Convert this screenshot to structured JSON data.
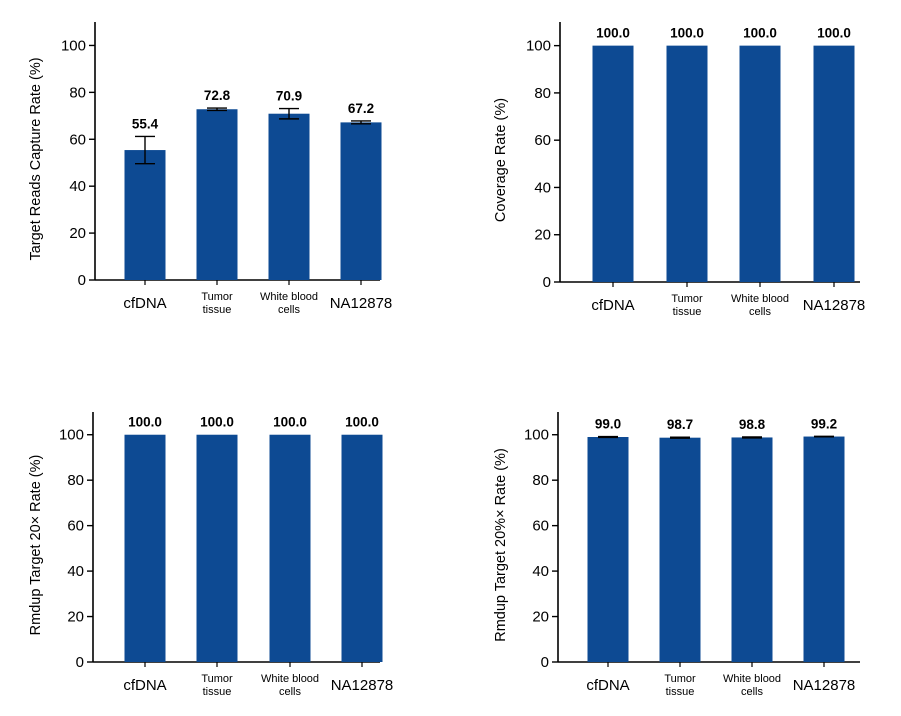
{
  "chart_data": [
    {
      "type": "bar",
      "ylabel": "Target Reads Capture Rate (%)",
      "categories": [
        [
          "cfDNA"
        ],
        [
          "Tumor",
          "tissue"
        ],
        [
          "White blood",
          "cells"
        ],
        [
          "NA12878"
        ]
      ],
      "values": [
        55.4,
        72.8,
        70.9,
        67.2
      ],
      "data_labels": [
        "55.4",
        "72.8",
        "70.9",
        "67.2"
      ],
      "error": [
        5.8,
        0.5,
        2.2,
        0.6
      ],
      "ylim": [
        0,
        110
      ],
      "yticks": [
        0,
        20,
        40,
        60,
        80,
        100
      ],
      "color": "#0d4a93"
    },
    {
      "type": "bar",
      "ylabel": "Coverage Rate (%)",
      "categories": [
        [
          "cfDNA"
        ],
        [
          "Tumor",
          "tissue"
        ],
        [
          "White blood",
          "cells"
        ],
        [
          "NA12878"
        ]
      ],
      "values": [
        100.0,
        100.0,
        100.0,
        100.0
      ],
      "data_labels": [
        "100.0",
        "100.0",
        "100.0",
        "100.0"
      ],
      "error": [
        0,
        0,
        0,
        0
      ],
      "ylim": [
        0,
        110
      ],
      "yticks": [
        0,
        20,
        40,
        60,
        80,
        100
      ],
      "color": "#0d4a93"
    },
    {
      "type": "bar",
      "ylabel": "Rmdup Target 20× Rate (%)",
      "categories": [
        [
          "cfDNA"
        ],
        [
          "Tumor",
          "tissue"
        ],
        [
          "White blood",
          "cells"
        ],
        [
          "NA12878"
        ]
      ],
      "values": [
        100.0,
        100.0,
        100.0,
        100.0
      ],
      "data_labels": [
        "100.0",
        "100.0",
        "100.0",
        "100.0"
      ],
      "error": [
        0,
        0,
        0,
        0
      ],
      "ylim": [
        0,
        110
      ],
      "yticks": [
        0,
        20,
        40,
        60,
        80,
        100
      ],
      "color": "#0d4a93"
    },
    {
      "type": "bar",
      "ylabel": "Rmdup Target 20%× Rate (%)",
      "categories": [
        [
          "cfDNA"
        ],
        [
          "Tumor",
          "tissue"
        ],
        [
          "White blood",
          "cells"
        ],
        [
          "NA12878"
        ]
      ],
      "values": [
        99.0,
        98.7,
        98.8,
        99.2
      ],
      "data_labels": [
        "99.0",
        "98.7",
        "98.8",
        "99.2"
      ],
      "error": [
        0.2,
        0.2,
        0.2,
        0.1
      ],
      "ylim": [
        0,
        110
      ],
      "yticks": [
        0,
        20,
        40,
        60,
        80,
        100
      ],
      "color": "#0d4a93"
    }
  ]
}
